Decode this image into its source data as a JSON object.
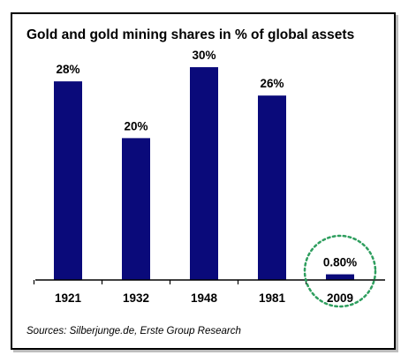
{
  "chart_data": {
    "type": "bar",
    "title": "Gold and gold mining shares in % of global assets",
    "categories": [
      "1921",
      "1932",
      "1948",
      "1981",
      "2009"
    ],
    "values": [
      28,
      20,
      30,
      26,
      0.8
    ],
    "data_labels": [
      "28%",
      "20%",
      "30%",
      "26%",
      "0.80%"
    ],
    "xlabel": "",
    "ylabel": "",
    "ylim": [
      0,
      32
    ],
    "grid": false,
    "highlighted_category": "2009",
    "source": "Sources: Silberjunge.de, Erste Group Research",
    "colors": {
      "bar": "#0a0a7a",
      "highlight_circle": "#2e9e5e",
      "text": "#000000"
    }
  }
}
